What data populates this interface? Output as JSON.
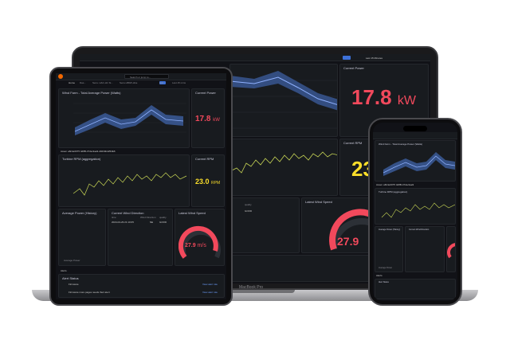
{
  "laptop": {
    "brand": "MacBook Pro",
    "time_range": "Last 15 Minutes",
    "current_power": {
      "title": "Current Power",
      "value": "17.8",
      "unit": "kW"
    },
    "current_rpm": {
      "title": "Current RPM",
      "value": "23"
    },
    "latest_wind_speed": {
      "title": "Latest Wind Speed",
      "value": "27.9"
    },
    "quality_header": "quality",
    "quality_value": "GOOD"
  },
  "tablet": {
    "breadcrumb": {
      "home": "Home",
      "sep1": "Das...",
      "item2": "Sens. HAC-H1 St...",
      "item3": "Sens.HBG5-H1a"
    },
    "search_placeholder": "Search or jump to...",
    "time_range": "Last 15 mins",
    "active_tab": "Edit",
    "avg_power": {
      "title": "Wind Farm - Total Average Power (Watts)"
    },
    "current_power": {
      "title": "Current Power",
      "value": "17.8",
      "unit": "kW"
    },
    "asset_row": "Asset: a8c4e0075 4d8B-47da-9ae9-d0234bd252E6",
    "turbine_rpm": {
      "title": "Turbine RPM (aggregation)"
    },
    "current_rpm": {
      "title": "Current RPM",
      "value": "23.0",
      "unit": "RPM"
    },
    "avg_power_history": {
      "title": "Average Power (History)",
      "legend": "Average Power"
    },
    "wind_direction": {
      "title": "Current Wind Direction",
      "col_time": "time",
      "col_dir": "Wind Direction",
      "col_quality": "quality",
      "time": "2024-04-29 21:10:05",
      "direction": "NE",
      "quality": "GOOD"
    },
    "latest_wind_speed": {
      "title": "Latest Wind Speed",
      "value": "27.9",
      "unit": "m/s"
    },
    "alerts": {
      "title": "Alerts"
    },
    "alert_status": {
      "title": "Alert Status",
      "items": [
        {
          "label": "Firmware",
          "link": "View alert rule"
        },
        {
          "label": "Firmware more pages needs their alert",
          "link": "View alert rule"
        }
      ]
    }
  },
  "phone": {
    "title": "Wind Farm - Total Average Power (Watts)",
    "asset_row": "Asset: a8c4e0075 4d8B-47da-9ae9",
    "turbine_rpm": "Turbine RPM (aggregation)",
    "avg_power_history": "Average Power (History)",
    "wind_direction": "Current Wind Direction",
    "legend": "Average Power",
    "alerts": "Alerts",
    "alert_status": "Alert Status"
  },
  "colors": {
    "red": "#f2495c",
    "yellow": "#fade2a",
    "blue": "#5794f2",
    "green": "#73bf69",
    "bg": "#111217",
    "panel": "#181b1f"
  }
}
